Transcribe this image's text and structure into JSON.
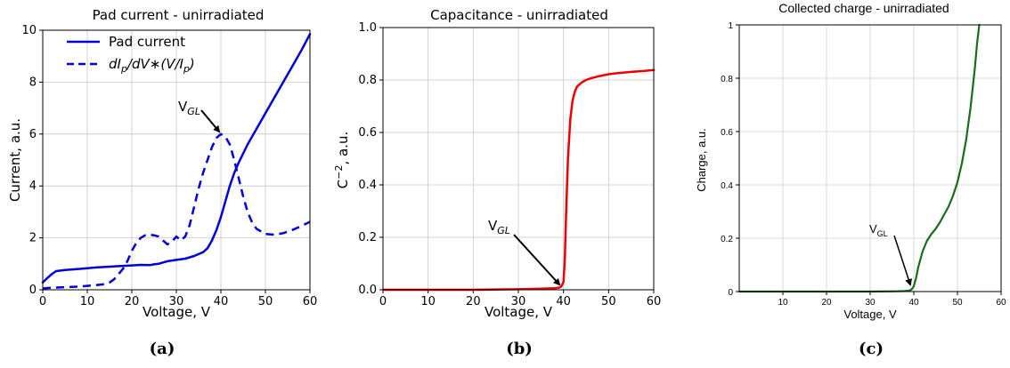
{
  "chart_data": [
    {
      "type": "line",
      "title": "Pad current - unirradiated",
      "xlabel": "Voltage, V",
      "ylabel": "Current, a.u.",
      "xlim": [
        0,
        60
      ],
      "ylim": [
        0,
        10
      ],
      "xticks": [
        "0",
        "10",
        "20",
        "30",
        "40",
        "50",
        "60"
      ],
      "yticks": [
        "0",
        "2",
        "4",
        "6",
        "8",
        "10"
      ],
      "grid": true,
      "legend_position": "top-left",
      "panel_label": "(a)",
      "annotation": {
        "text": "V",
        "subscript": "GL",
        "x": 40,
        "y": 6.0
      },
      "series": [
        {
          "name": "Pad current",
          "style": "solid",
          "color": "#0000dd",
          "x": [
            0,
            1,
            2,
            3,
            5,
            8,
            10,
            12,
            15,
            18,
            20,
            22,
            24,
            25,
            26,
            27,
            28,
            30,
            32,
            34,
            36,
            37,
            38,
            39,
            40,
            41,
            42,
            43,
            44,
            46,
            48,
            50,
            52,
            54,
            56,
            58,
            60
          ],
          "y": [
            0.28,
            0.45,
            0.6,
            0.72,
            0.76,
            0.8,
            0.83,
            0.86,
            0.89,
            0.92,
            0.94,
            0.96,
            0.95,
            0.98,
            1.0,
            1.05,
            1.1,
            1.15,
            1.2,
            1.3,
            1.45,
            1.6,
            1.9,
            2.3,
            2.8,
            3.4,
            4.0,
            4.5,
            4.9,
            5.6,
            6.2,
            6.8,
            7.4,
            8.0,
            8.6,
            9.2,
            9.85
          ]
        },
        {
          "name": "dI_p/dV*(V/I_p)",
          "label_parts": {
            "main": "dI",
            "sub1": "p",
            "mid": "/dV∗(V/I",
            "sub2": "p",
            "end": ")"
          },
          "style": "dashed",
          "color": "#0000dd",
          "x": [
            0,
            2,
            5,
            8,
            10,
            12,
            14,
            15,
            16,
            17,
            18,
            19,
            20,
            21,
            22,
            23,
            24,
            25,
            26,
            27,
            28,
            29,
            30,
            31,
            32,
            33,
            34,
            35,
            36,
            37,
            38,
            39,
            40,
            41,
            42,
            43,
            44,
            45,
            46,
            47,
            48,
            50,
            52,
            54,
            56,
            58,
            60
          ],
          "y": [
            0.05,
            0.08,
            0.1,
            0.12,
            0.15,
            0.18,
            0.22,
            0.28,
            0.4,
            0.6,
            0.8,
            1.1,
            1.5,
            1.8,
            2.0,
            2.1,
            2.12,
            2.1,
            2.05,
            1.9,
            1.75,
            1.85,
            2.05,
            1.9,
            2.05,
            2.5,
            3.2,
            3.9,
            4.5,
            5.0,
            5.5,
            5.85,
            6.0,
            5.9,
            5.6,
            5.0,
            4.3,
            3.6,
            3.0,
            2.6,
            2.35,
            2.15,
            2.12,
            2.18,
            2.3,
            2.45,
            2.62
          ]
        }
      ]
    },
    {
      "type": "line",
      "title": "Capacitance - unirradiated",
      "xlabel": "Voltage, V",
      "ylabel": "C",
      "ylabel_sup": "−2",
      "ylabel_rest": ", a.u.",
      "xlim": [
        0,
        60
      ],
      "ylim": [
        0,
        1.0
      ],
      "xticks": [
        "0",
        "10",
        "20",
        "30",
        "40",
        "50",
        "60"
      ],
      "yticks": [
        "0.0",
        "0.2",
        "0.4",
        "0.6",
        "0.8",
        "1.0"
      ],
      "grid": true,
      "panel_label": "(b)",
      "annotation": {
        "text": "V",
        "subscript": "GL",
        "x": 40,
        "y": 0.0
      },
      "series": [
        {
          "color": "#ee0000",
          "x": [
            0,
            10,
            20,
            30,
            35,
            38,
            39,
            39.5,
            40,
            40.3,
            40.6,
            41,
            41.5,
            42,
            42.5,
            43,
            44,
            45,
            46,
            48,
            50,
            52,
            55,
            58,
            60
          ],
          "y": [
            0.0,
            0.0,
            0.0,
            0.002,
            0.004,
            0.006,
            0.008,
            0.012,
            0.03,
            0.12,
            0.3,
            0.5,
            0.65,
            0.72,
            0.755,
            0.775,
            0.79,
            0.8,
            0.806,
            0.815,
            0.822,
            0.826,
            0.831,
            0.835,
            0.838
          ]
        }
      ]
    },
    {
      "type": "line",
      "title": "Collected charge - unirradiated",
      "xlabel": "Voltage, V",
      "ylabel": "Charge, a.u.",
      "xlim": [
        0,
        60
      ],
      "ylim": [
        0,
        1.0
      ],
      "xticks": [
        "10",
        "20",
        "30",
        "40",
        "50",
        "60"
      ],
      "yticks": [
        "0",
        "0.2",
        "0.4",
        "0.6",
        "0.8",
        "1"
      ],
      "grid": true,
      "panel_label": "(c)",
      "annotation": {
        "text": "V",
        "subscript": "GL",
        "x": 39.5,
        "y": 0.0
      },
      "series": [
        {
          "color": "#1a6b1a",
          "x": [
            0,
            10,
            20,
            30,
            36,
            38,
            39,
            39.5,
            40,
            40.5,
            41,
            42,
            43,
            44,
            45,
            46,
            47,
            48,
            49,
            50,
            51,
            52,
            53,
            54,
            54.5,
            55
          ],
          "y": [
            0.0,
            0.0,
            0.0,
            0.0,
            0.001,
            0.002,
            0.004,
            0.008,
            0.02,
            0.05,
            0.09,
            0.15,
            0.19,
            0.215,
            0.235,
            0.26,
            0.29,
            0.32,
            0.36,
            0.41,
            0.48,
            0.57,
            0.69,
            0.84,
            0.93,
            1.0
          ]
        }
      ]
    }
  ]
}
